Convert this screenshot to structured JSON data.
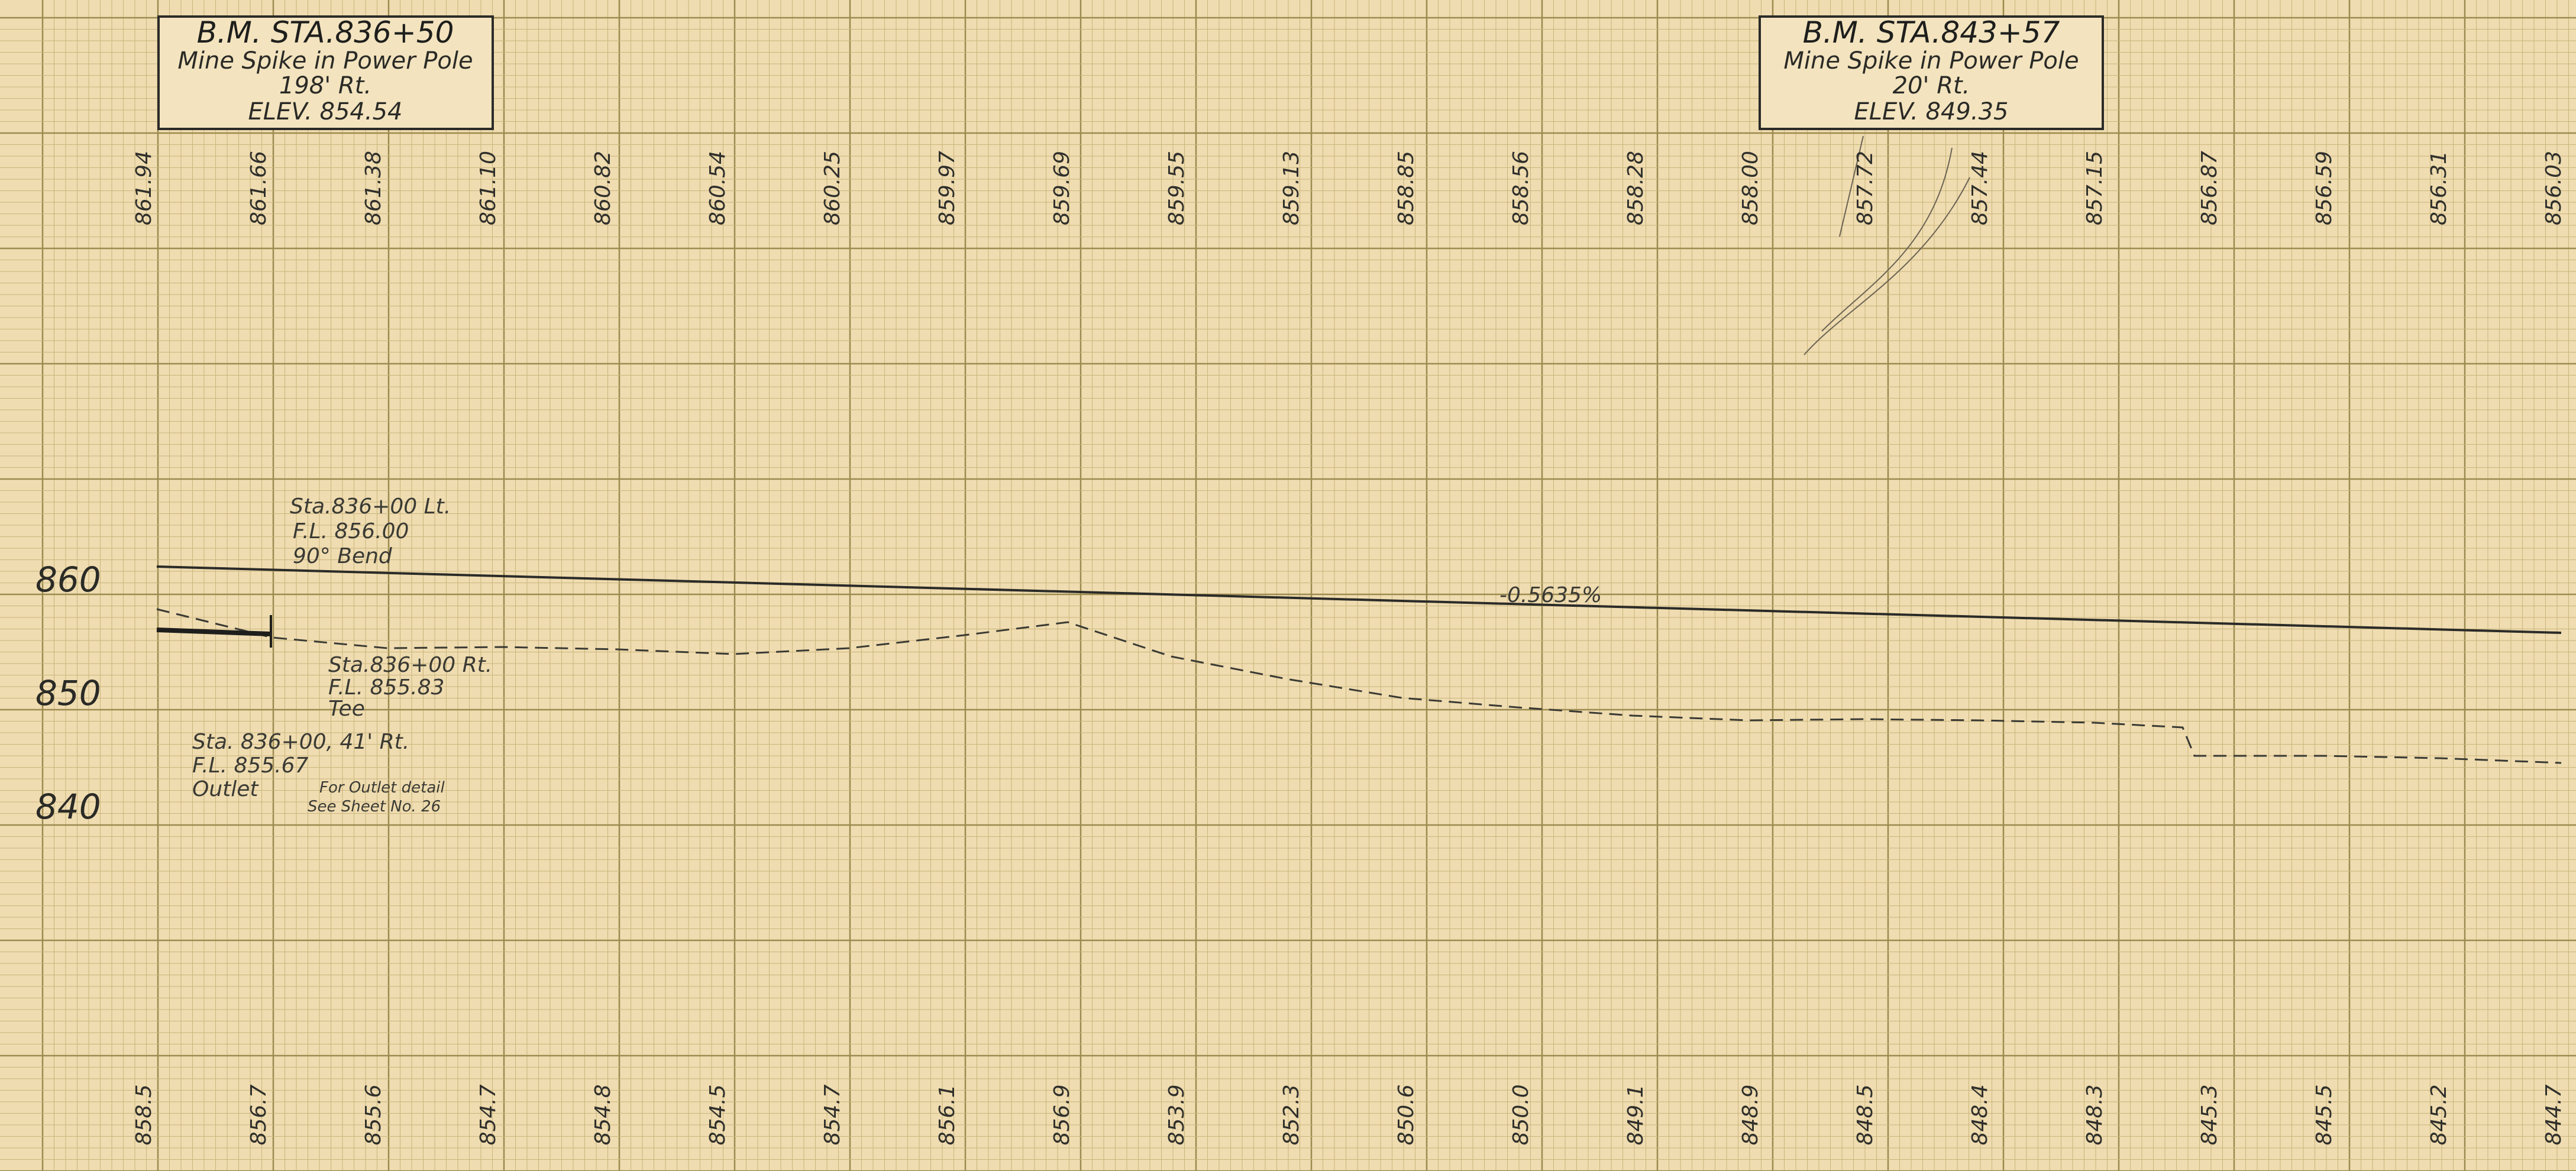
{
  "benchmarks": [
    {
      "title": "B.M. STA.836+50",
      "line1": "Mine Spike in Power Pole",
      "line2": "198' Rt.",
      "line3": "ELEV. 854.54"
    },
    {
      "title": "B.M. STA.843+57",
      "line1": "Mine Spike in Power Pole",
      "line2": "20' Rt.",
      "line3": "ELEV. 849.35"
    }
  ],
  "top_elevations": [
    "861.94",
    "861.66",
    "861.38",
    "861.10",
    "860.82",
    "860.54",
    "860.25",
    "859.97",
    "859.69",
    "859.55",
    "859.13",
    "858.85",
    "858.56",
    "858.28",
    "858.00",
    "857.72",
    "857.44",
    "857.15",
    "856.87",
    "856.59",
    "856.31",
    "856.03"
  ],
  "bottom_elevations": [
    "858.5",
    "856.7",
    "855.6",
    "854.7",
    "854.8",
    "854.5",
    "854.7",
    "856.1",
    "856.9",
    "853.9",
    "852.3",
    "850.6",
    "850.0",
    "849.1",
    "848.9",
    "848.5",
    "848.4",
    "848.3",
    "845.3",
    "845.5",
    "845.2",
    "844.7"
  ],
  "axis_labels": [
    "860",
    "850",
    "840"
  ],
  "grade_label": "-0.5635%",
  "notes": {
    "n1": [
      "Sta.836+00 Lt.",
      "F.L. 856.00",
      "90° Bend"
    ],
    "n2": [
      "Sta.836+00 Rt.",
      "F.L. 855.83",
      "Tee"
    ],
    "n3": [
      "Sta. 836+00, 41' Rt.",
      "F.L. 855.67",
      "Outlet"
    ],
    "outlet_detail": [
      "For Outlet detail",
      "See Sheet No. 26"
    ]
  },
  "colors": {
    "paper": "#efdcb0",
    "grid_minor": "#c9b57c",
    "grid_major": "#9c8a4f",
    "ink": "#2a2a26"
  }
}
